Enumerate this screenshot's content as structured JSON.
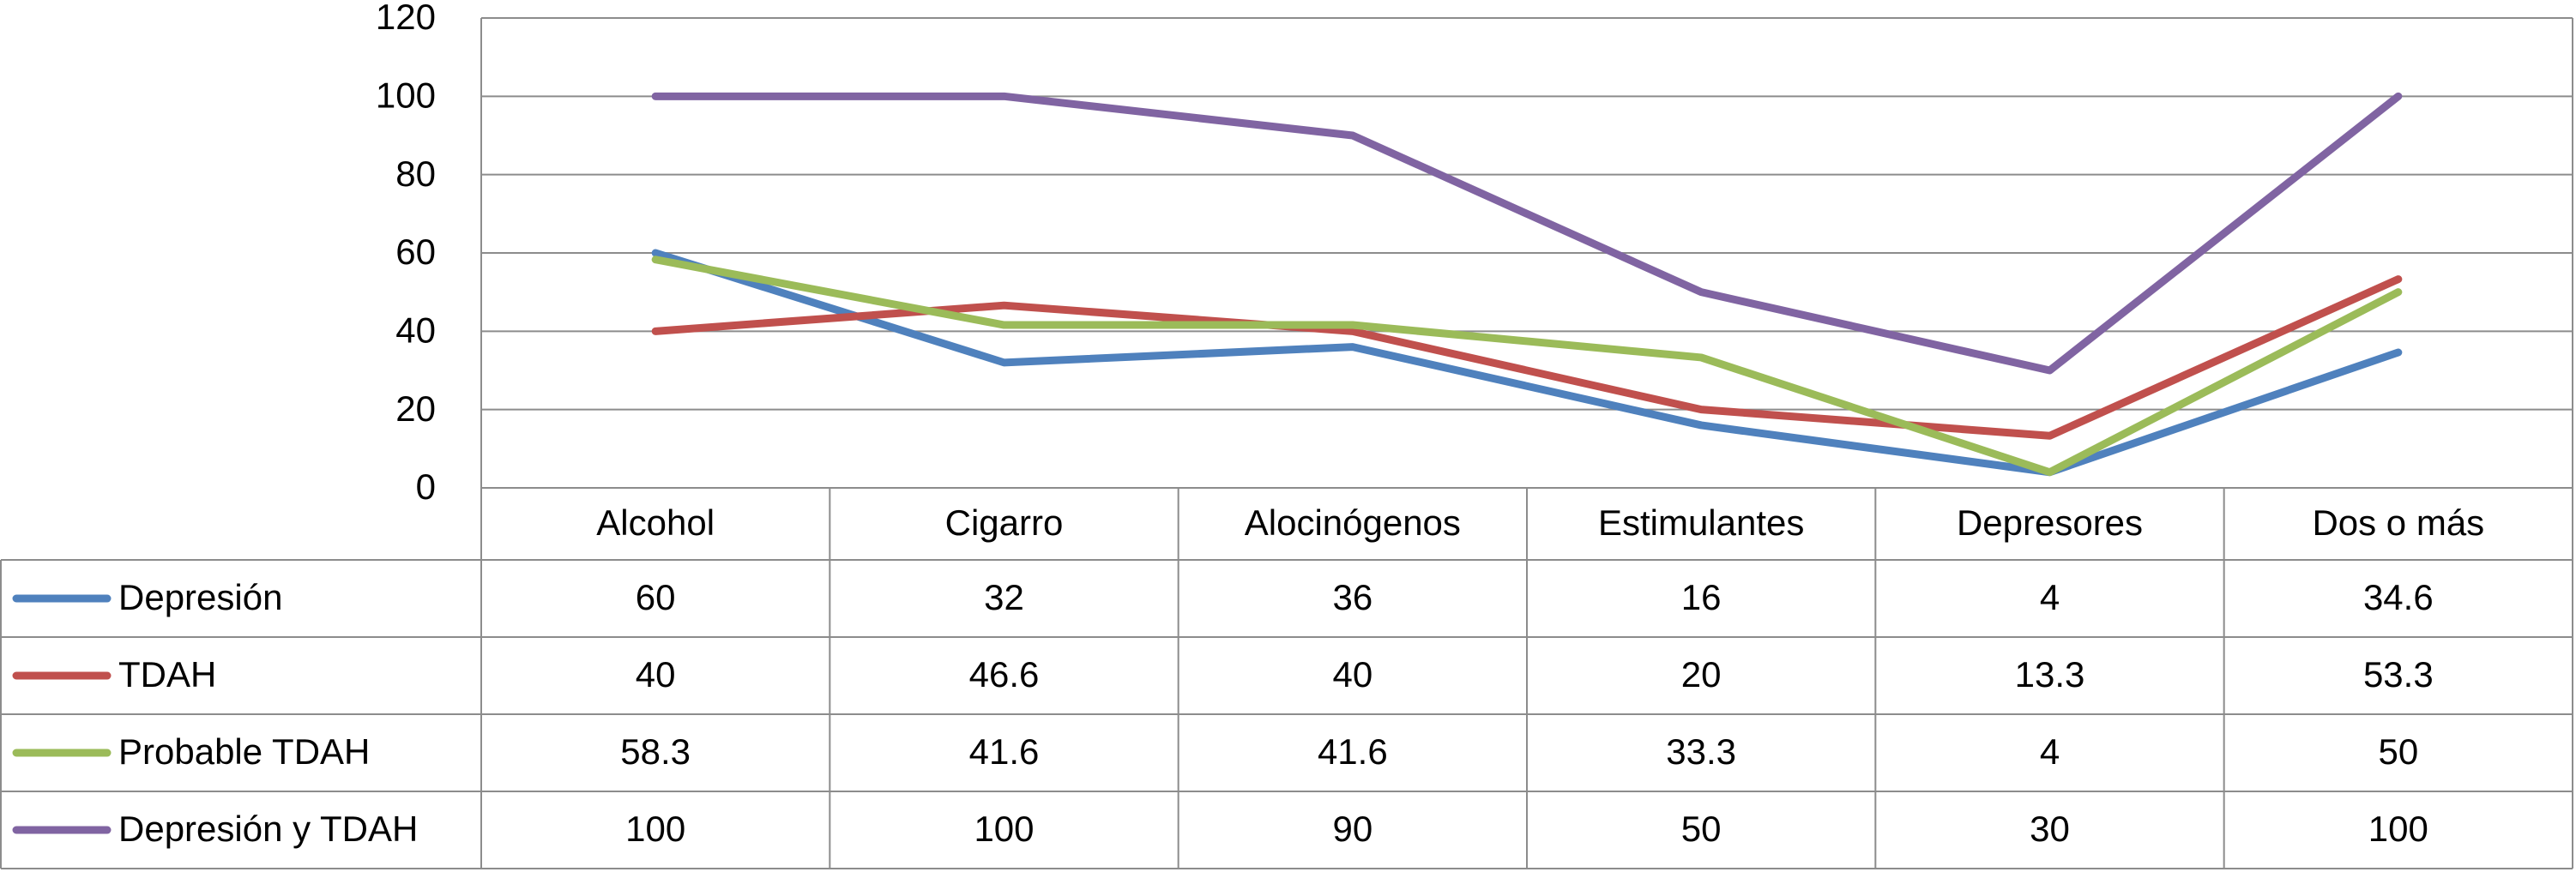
{
  "chart_data": {
    "type": "line",
    "categories": [
      "Alcohol",
      "Cigarro",
      "Alocinógenos",
      "Estimulantes",
      "Depresores",
      "Dos o más"
    ],
    "series": [
      {
        "name": "Depresión",
        "color": "#4f81bd",
        "values": [
          60,
          32,
          36,
          16,
          4,
          34.6
        ]
      },
      {
        "name": "TDAH",
        "color": "#c0504d",
        "values": [
          40,
          46.6,
          40,
          20,
          13.3,
          53.3
        ]
      },
      {
        "name": "Probable TDAH",
        "color": "#9bbb59",
        "values": [
          58.3,
          41.6,
          41.6,
          33.3,
          4,
          50
        ]
      },
      {
        "name": "Depresión y TDAH",
        "color": "#8064a2",
        "values": [
          100,
          100,
          90,
          50,
          30,
          100
        ]
      }
    ],
    "ylim": [
      0,
      120
    ],
    "yticks": [
      0,
      20,
      40,
      60,
      80,
      100,
      120
    ],
    "grid": true
  }
}
